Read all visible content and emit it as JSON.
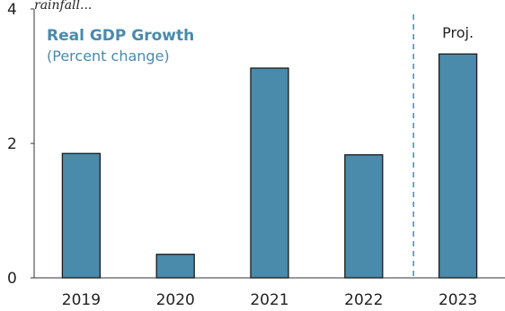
{
  "header": {
    "clipped_text": "rainfall..."
  },
  "chart_data": {
    "type": "bar",
    "title": "Real GDP Growth",
    "subtitle": "(Percent change)",
    "categories": [
      "2019",
      "2020",
      "2021",
      "2022",
      "2023"
    ],
    "values": [
      1.85,
      0.35,
      3.12,
      1.83,
      3.33
    ],
    "ylim": [
      0,
      4
    ],
    "yticks": [
      0,
      2,
      4
    ],
    "xlabel": "",
    "ylabel": "",
    "grid": false,
    "projection_start_category": "2023",
    "projection_label": "Proj.",
    "colors": {
      "bar": "#4a8aab",
      "bar_edge": "#1a1a1a",
      "title": "#4a8aab",
      "divider": "#4a8aab"
    }
  }
}
